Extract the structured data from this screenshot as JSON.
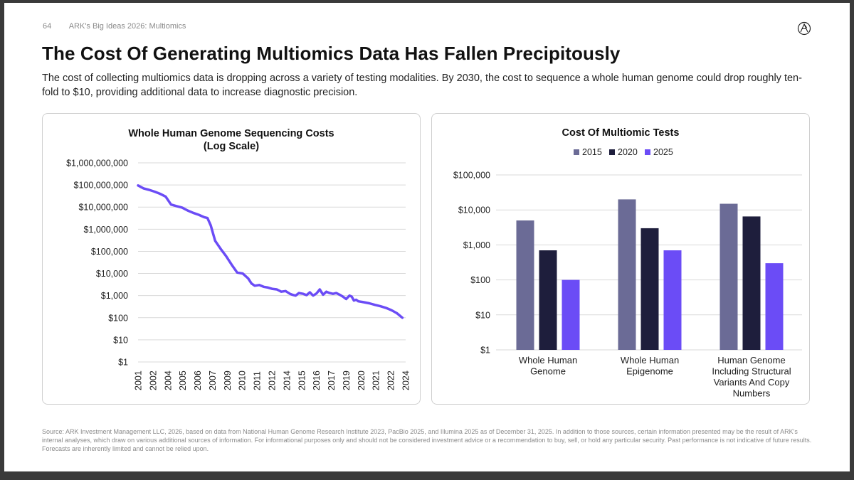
{
  "header": {
    "page_number": "64",
    "section": "ARK's Big Ideas 2026: Multiomics",
    "logo_icon": "ark-logo-icon"
  },
  "title": "The Cost Of Generating Multiomics Data Has Fallen Precipitously",
  "subtitle": "The cost of collecting multiomics data is dropping across a variety of testing modalities. By 2030, the cost to sequence a whole human genome could drop roughly ten-fold to $10, providing additional data to increase diagnostic precision.",
  "footer": "Source: ARK Investment Management LLC, 2026, based on data from National Human Genome Research Institute 2023, PacBio 2025, and Illumina 2025 as of December 31, 2025. In addition to those sources, certain information presented may be the result of ARK's internal analyses, which draw on various additional sources of information. For informational purposes only and should not be considered investment advice or a recommendation to buy, sell, or hold any particular security. Past performance is not indicative of future results. Forecasts are inherently limited and cannot be relied upon.",
  "colors": {
    "line": "#6b4cf6",
    "s2015": "#6b6b96",
    "s2020": "#1e1e3c",
    "s2025": "#6b4cf6",
    "grid": "#d9d9d9",
    "text": "#222222"
  },
  "chart_data": [
    {
      "type": "line",
      "title": [
        "Whole Human Genome Sequencing Costs",
        "(Log Scale)"
      ],
      "xlabel": "",
      "ylabel": "",
      "yscale": "log",
      "ylim": [
        1,
        1000000000
      ],
      "xlim": [
        2001,
        2025.3
      ],
      "y_ticks": [
        "$1,000,000,000",
        "$100,000,000",
        "$10,000,000",
        "$1,000,000",
        "$100,000",
        "$10,000",
        "$1,000",
        "$100",
        "$10",
        "$1"
      ],
      "x_ticks": [
        "2001",
        "2002",
        "2004",
        "2005",
        "2006",
        "2007",
        "2009",
        "2010",
        "2011",
        "2012",
        "2014",
        "2015",
        "2016",
        "2017",
        "2019",
        "2020",
        "2021",
        "2022",
        "2024"
      ],
      "x": [
        2001.0,
        2001.5,
        2002.0,
        2002.5,
        2003.0,
        2003.5,
        2004.0,
        2004.5,
        2005.0,
        2005.5,
        2006.0,
        2006.5,
        2007.0,
        2007.3,
        2007.6,
        2008.0,
        2008.5,
        2009.0,
        2009.5,
        2010.0,
        2010.5,
        2011.0,
        2011.3,
        2011.6,
        2012.0,
        2012.4,
        2012.8,
        2013.2,
        2013.6,
        2014.0,
        2014.4,
        2014.8,
        2015.0,
        2015.3,
        2015.6,
        2016.0,
        2016.3,
        2016.6,
        2016.9,
        2017.2,
        2017.5,
        2017.8,
        2018.1,
        2018.4,
        2018.7,
        2019.0,
        2019.3,
        2019.6,
        2019.9,
        2020.2,
        2020.4,
        2020.6,
        2020.8,
        2021.0,
        2021.5,
        2022.0,
        2022.5,
        2023.0,
        2023.5,
        2024.0,
        2024.5,
        2025.0
      ],
      "values": [
        95000000,
        70000000,
        60000000,
        50000000,
        40000000,
        30000000,
        13000000,
        11000000,
        9500000,
        7000000,
        5500000,
        4500000,
        3500000,
        3200000,
        1500000,
        300000,
        130000,
        60000,
        25000,
        11000,
        10000,
        6000,
        3500,
        2800,
        3000,
        2500,
        2300,
        2000,
        1900,
        1500,
        1600,
        1200,
        1100,
        1000,
        1300,
        1200,
        1050,
        1400,
        1000,
        1250,
        1900,
        1100,
        1500,
        1300,
        1200,
        1300,
        1100,
        900,
        700,
        1000,
        900,
        600,
        650,
        550,
        500,
        450,
        380,
        330,
        280,
        220,
        160,
        100
      ]
    },
    {
      "type": "bar",
      "title": "Cost Of Multiomic Tests",
      "yscale": "log",
      "ylim": [
        1,
        100000
      ],
      "y_ticks": [
        "$100,000",
        "$10,000",
        "$1,000",
        "$100",
        "$10",
        "$1"
      ],
      "legend": [
        "2015",
        "2020",
        "2025"
      ],
      "legend_position": "top-center",
      "categories": [
        [
          "Whole Human",
          "Genome"
        ],
        [
          "Whole Human",
          "Epigenome"
        ],
        [
          "Human Genome",
          "Including Structural",
          "Variants And Copy",
          "Numbers"
        ]
      ],
      "series": [
        {
          "name": "2015",
          "values": [
            5000,
            20000,
            15000
          ]
        },
        {
          "name": "2020",
          "values": [
            700,
            3000,
            6500
          ]
        },
        {
          "name": "2025",
          "values": [
            100,
            700,
            300
          ]
        }
      ]
    }
  ]
}
